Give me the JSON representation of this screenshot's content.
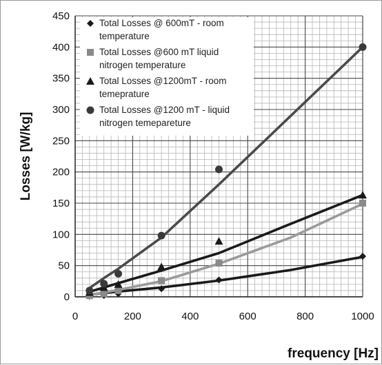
{
  "chart_data": {
    "type": "scatter",
    "xlabel": "frequency [Hz]",
    "ylabel": "Losses [W/kg]",
    "xlim": [
      0,
      1000
    ],
    "ylim": [
      0,
      450
    ],
    "x_ticks": [
      "0",
      "200",
      "400",
      "600",
      "800",
      "1000"
    ],
    "y_ticks": [
      "0",
      "50",
      "100",
      "150",
      "200",
      "250",
      "300",
      "350",
      "400",
      "450"
    ],
    "grid": "major and minor",
    "legend_position": "top-left",
    "series": [
      {
        "name": "Total Losses @ 600mT - room temperature",
        "legend_lines": [
          "Total Losses @ 600mT - room",
          "temperature"
        ],
        "marker": "diamond",
        "color": "#1a1a1a",
        "x": [
          50,
          100,
          150,
          300,
          500,
          1000
        ],
        "y": [
          1,
          2,
          5,
          13,
          27,
          65
        ],
        "trend": [
          [
            50,
            3.5
          ],
          [
            100,
            6
          ],
          [
            150,
            8.5
          ],
          [
            300,
            15
          ],
          [
            500,
            26
          ],
          [
            750,
            43
          ],
          [
            1000,
            64
          ]
        ]
      },
      {
        "name": "Total Losses @600 mT liquid nitrogen temperature",
        "legend_lines": [
          "Total Losses @600 mT liquid",
          "nitrogen temperature"
        ],
        "marker": "square",
        "color": "#8a8a8a",
        "x": [
          50,
          100,
          150,
          300,
          500,
          1000
        ],
        "y": [
          2,
          5,
          10,
          26,
          54,
          150
        ],
        "trend": [
          [
            50,
            3
          ],
          [
            100,
            7
          ],
          [
            150,
            11
          ],
          [
            300,
            25
          ],
          [
            500,
            53
          ],
          [
            750,
            95
          ],
          [
            1000,
            149
          ]
        ]
      },
      {
        "name": "Total Losses @1200mT - room temeprature",
        "legend_lines": [
          "Total Losses @1200mT - room",
          "temeprature"
        ],
        "marker": "triangle",
        "color": "#1a1a1a",
        "x": [
          50,
          100,
          150,
          300,
          500,
          1000
        ],
        "y": [
          7,
          15,
          20,
          48,
          89,
          163
        ],
        "trend": [
          [
            50,
            8
          ],
          [
            100,
            15
          ],
          [
            150,
            22
          ],
          [
            300,
            42
          ],
          [
            500,
            70
          ],
          [
            750,
            117
          ],
          [
            1000,
            163
          ]
        ]
      },
      {
        "name": "Total Losses @1200 mT - liquid nitrogen temepareture",
        "legend_lines": [
          "Total Losses @1200 mT - liquid",
          "nitrogen temepareture"
        ],
        "marker": "circle",
        "color": "#3a3a3a",
        "x": [
          50,
          100,
          150,
          300,
          500,
          1000
        ],
        "y": [
          10,
          21,
          37,
          98,
          204,
          400
        ],
        "trend": [
          [
            50,
            14
          ],
          [
            100,
            30
          ],
          [
            150,
            45
          ],
          [
            300,
            95
          ],
          [
            500,
            180
          ],
          [
            750,
            290
          ],
          [
            1000,
            400
          ]
        ]
      }
    ]
  }
}
